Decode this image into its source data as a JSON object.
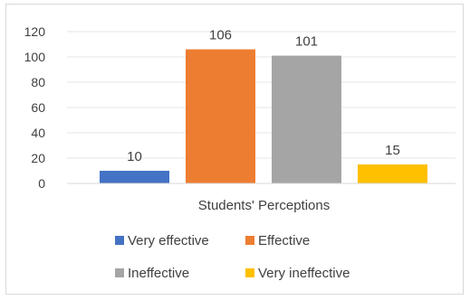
{
  "chart_data": {
    "type": "bar",
    "xlabel": "Students' Perceptions",
    "ylabel": "",
    "ylim": [
      0,
      120
    ],
    "yticks": [
      0,
      20,
      40,
      60,
      80,
      100,
      120
    ],
    "grid": true,
    "legend_position": "bottom",
    "series": [
      {
        "name": "Very effective",
        "values": [
          10
        ],
        "color": "#4472C4"
      },
      {
        "name": "Effective",
        "values": [
          106
        ],
        "color": "#ED7D31"
      },
      {
        "name": "Ineffective",
        "values": [
          101
        ],
        "color": "#A5A5A5"
      },
      {
        "name": "Very ineffective",
        "values": [
          15
        ],
        "color": "#FFC000"
      }
    ]
  }
}
